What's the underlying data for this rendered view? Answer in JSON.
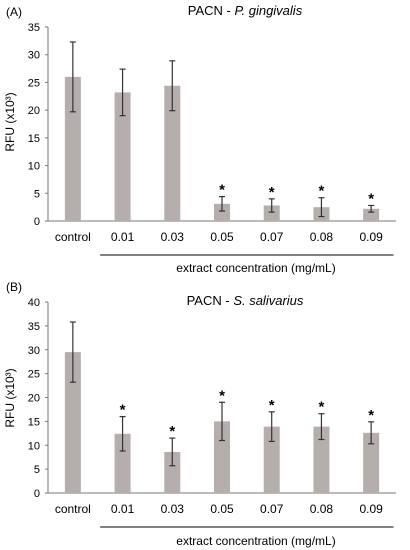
{
  "chart_data": [
    {
      "type": "bar",
      "panel_label": "(A)",
      "title_prefix": "PACN - ",
      "title_species": "P. gingivalis",
      "ylabel": "RFU (x10³)",
      "xlabel": "extract concentration (mg/mL)",
      "ylim": [
        0,
        35
      ],
      "yticks": [
        0,
        5,
        10,
        15,
        20,
        25,
        30,
        35
      ],
      "categories": [
        "control",
        "0.01",
        "0.03",
        "0.05",
        "0.07",
        "0.08",
        "0.09"
      ],
      "values": [
        26.0,
        23.2,
        24.4,
        3.1,
        2.8,
        2.5,
        2.2
      ],
      "errors": [
        6.3,
        4.2,
        4.5,
        1.3,
        1.2,
        1.7,
        0.6
      ],
      "significant": [
        false,
        false,
        false,
        true,
        true,
        true,
        true
      ],
      "significance_mark": "*",
      "grid": false,
      "bar_color": "#b6aead"
    },
    {
      "type": "bar",
      "panel_label": "(B)",
      "title_prefix": "PACN - ",
      "title_species": "S. salivarius",
      "ylabel": "RFU (x10³)",
      "xlabel": "extract concentration (mg/mL)",
      "ylim": [
        0,
        40
      ],
      "yticks": [
        0,
        5,
        10,
        15,
        20,
        25,
        30,
        35,
        40
      ],
      "categories": [
        "control",
        "0.01",
        "0.03",
        "0.05",
        "0.07",
        "0.08",
        "0.09"
      ],
      "values": [
        29.5,
        12.4,
        8.6,
        15.0,
        13.9,
        13.9,
        12.6
      ],
      "errors": [
        6.3,
        3.6,
        2.9,
        4.0,
        3.1,
        2.7,
        2.3
      ],
      "significant": [
        false,
        true,
        true,
        true,
        true,
        true,
        true
      ],
      "significance_mark": "*",
      "grid": false,
      "bar_color": "#b6aead"
    }
  ]
}
